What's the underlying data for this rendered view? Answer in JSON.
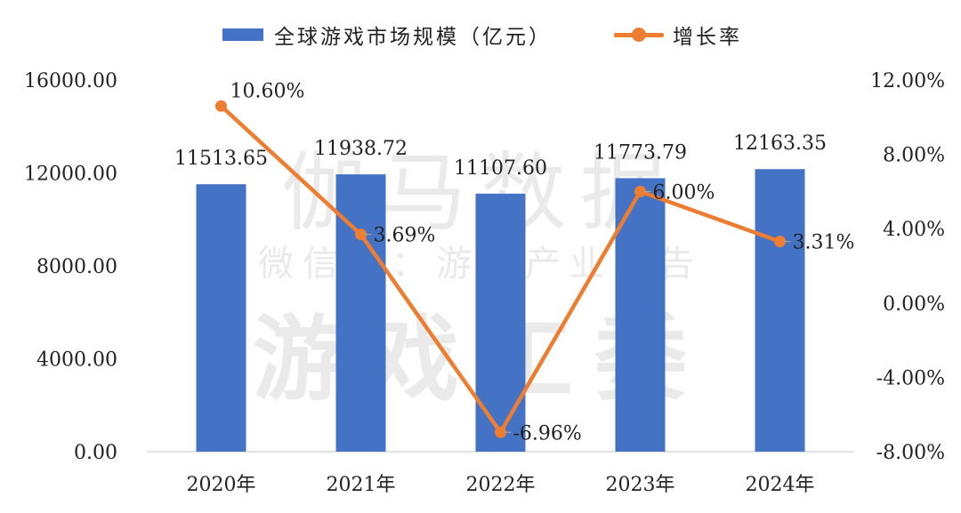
{
  "legend": {
    "bar_label": "全球游戏市场规模（亿元）",
    "line_label": "增长率"
  },
  "watermark": {
    "line1": "伽马数据",
    "line2": "微信号：游戏产业报告",
    "line3": "游戏工委"
  },
  "colors": {
    "bar": "#4472c4",
    "line": "#ed7d31",
    "grid": "#d9d9d9"
  },
  "chart_data": {
    "type": "bar",
    "title": "",
    "categories": [
      "2020年",
      "2021年",
      "2022年",
      "2023年",
      "2024年"
    ],
    "series": [
      {
        "name": "全球游戏市场规模（亿元）",
        "type": "bar",
        "axis": "left",
        "values": [
          11513.65,
          11938.72,
          11107.6,
          11773.79,
          12163.35
        ],
        "labels": [
          "11513.65",
          "11938.72",
          "11107.60",
          "11773.79",
          "12163.35"
        ]
      },
      {
        "name": "增长率",
        "type": "line",
        "axis": "right",
        "values": [
          10.6,
          3.69,
          -6.96,
          6.0,
          3.31
        ],
        "labels": [
          "10.60%",
          "3.69%",
          "-6.96%",
          "6.00%",
          "3.31%"
        ]
      }
    ],
    "left_axis": {
      "ylim": [
        0,
        16000
      ],
      "ticks": [
        0,
        4000,
        8000,
        12000,
        16000
      ],
      "tick_labels": [
        "0.00",
        "4000.00",
        "8000.00",
        "12000.00",
        "16000.00"
      ]
    },
    "right_axis": {
      "ylim": [
        -8,
        12
      ],
      "ticks": [
        -8,
        -4,
        0,
        4,
        8,
        12
      ],
      "tick_labels": [
        "-8.00%",
        "-4.00%",
        "0.00%",
        "4.00%",
        "8.00%",
        "12.00%"
      ]
    },
    "legend_position": "top-center",
    "grid": false
  }
}
